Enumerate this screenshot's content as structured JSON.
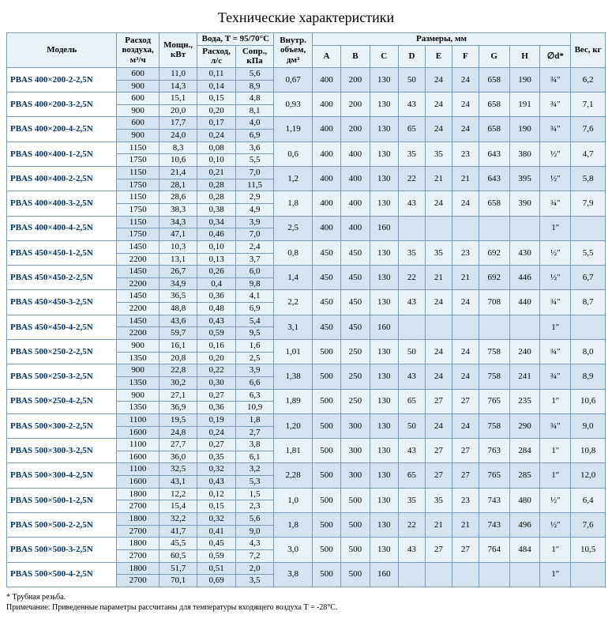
{
  "title": "Технические характеристики",
  "columns": {
    "model": "Модель",
    "airflow": "Расход воздуха, м³/ч",
    "power": "Мощн., кВт",
    "water": "Вода, T = 95/70°C",
    "flow": "Расход, л/с",
    "drop": "Сопр., кПа",
    "volume": "Внутр. объем, дм³",
    "dims": "Размеры, мм",
    "A": "A",
    "B": "B",
    "C": "C",
    "D": "D",
    "E": "E",
    "F": "F",
    "G": "G",
    "H": "H",
    "d": "∅d*",
    "weight": "Вес, кг"
  },
  "col_widths": {
    "model": 115,
    "airflow": 44,
    "power": 40,
    "flow": 40,
    "drop": 40,
    "volume": 40,
    "A": 30,
    "B": 30,
    "C": 30,
    "D": 28,
    "E": 28,
    "F": 28,
    "G": 32,
    "H": 32,
    "d": 32,
    "weight": 36
  },
  "header_bg": "#eaf2f9",
  "row_odd_bg": "#d5e3f0",
  "row_even_bg": "#eaf2f9",
  "border_color": "#7a9ab8",
  "model_color": "#003366",
  "rows": [
    {
      "model": "PBAS 400×200-2-2,5N",
      "air": [
        "600",
        "900"
      ],
      "pw": [
        "11,0",
        "14,3"
      ],
      "fl": [
        "0,11",
        "0,14"
      ],
      "dp": [
        "5,6",
        "8,9"
      ],
      "vol": "0,67",
      "A": "400",
      "B": "200",
      "C": "130",
      "D": "50",
      "E": "24",
      "F": "24",
      "G": "658",
      "H": "190",
      "d": "¾″",
      "wt": "6,2"
    },
    {
      "model": "PBAS 400×200-3-2,5N",
      "air": [
        "600",
        "900"
      ],
      "pw": [
        "15,1",
        "20,0"
      ],
      "fl": [
        "0,15",
        "0,20"
      ],
      "dp": [
        "4,8",
        "8,1"
      ],
      "vol": "0,93",
      "A": "400",
      "B": "200",
      "C": "130",
      "D": "43",
      "E": "24",
      "F": "24",
      "G": "658",
      "H": "191",
      "d": "¾″",
      "wt": "7,1"
    },
    {
      "model": "PBAS 400×200-4-2,5N",
      "air": [
        "600",
        "900"
      ],
      "pw": [
        "17,7",
        "24,0"
      ],
      "fl": [
        "0,17",
        "0,24"
      ],
      "dp": [
        "4,0",
        "6,9"
      ],
      "vol": "1,19",
      "A": "400",
      "B": "200",
      "C": "130",
      "D": "65",
      "E": "24",
      "F": "24",
      "G": "658",
      "H": "190",
      "d": "¾″",
      "wt": "7,6"
    },
    {
      "model": "PBAS 400×400-1-2,5N",
      "air": [
        "1150",
        "1750"
      ],
      "pw": [
        "8,3",
        "10,6"
      ],
      "fl": [
        "0,08",
        "0,10"
      ],
      "dp": [
        "3,6",
        "5,5"
      ],
      "vol": "0,6",
      "A": "400",
      "B": "400",
      "C": "130",
      "D": "35",
      "E": "35",
      "F": "23",
      "G": "643",
      "H": "380",
      "d": "½″",
      "wt": "4,7"
    },
    {
      "model": "PBAS 400×400-2-2,5N",
      "air": [
        "1150",
        "1750"
      ],
      "pw": [
        "21,4",
        "28,1"
      ],
      "fl": [
        "0,21",
        "0,28"
      ],
      "dp": [
        "7,0",
        "11,5"
      ],
      "vol": "1,2",
      "A": "400",
      "B": "400",
      "C": "130",
      "D": "22",
      "E": "21",
      "F": "21",
      "G": "643",
      "H": "395",
      "d": "½″",
      "wt": "5,8"
    },
    {
      "model": "PBAS 400×400-3-2,5N",
      "air": [
        "1150",
        "1750"
      ],
      "pw": [
        "28,6",
        "38,3"
      ],
      "fl": [
        "0,28",
        "0,38"
      ],
      "dp": [
        "2,9",
        "4,9"
      ],
      "vol": "1,8",
      "A": "400",
      "B": "400",
      "C": "130",
      "D": "43",
      "E": "24",
      "F": "24",
      "G": "658",
      "H": "390",
      "d": "¾″",
      "wt": "7,9"
    },
    {
      "model": "PBAS 400×400-4-2,5N",
      "air": [
        "1150",
        "1750"
      ],
      "pw": [
        "34,3",
        "47,1"
      ],
      "fl": [
        "0,34",
        "0,46"
      ],
      "dp": [
        "3,9",
        "7,0"
      ],
      "vol": "2,5",
      "A": "400",
      "B": "400",
      "C": "160",
      "D": "",
      "E": "",
      "F": "",
      "G": "",
      "H": "",
      "d": "1″",
      "wt": ""
    },
    {
      "model": "PBAS 450×450-1-2,5N",
      "air": [
        "1450",
        "2200"
      ],
      "pw": [
        "10,3",
        "13,1"
      ],
      "fl": [
        "0,10",
        "0,13"
      ],
      "dp": [
        "2,4",
        "3,7"
      ],
      "vol": "0,8",
      "A": "450",
      "B": "450",
      "C": "130",
      "D": "35",
      "E": "35",
      "F": "23",
      "G": "692",
      "H": "430",
      "d": "½″",
      "wt": "5,5"
    },
    {
      "model": "PBAS 450×450-2-2,5N",
      "air": [
        "1450",
        "2200"
      ],
      "pw": [
        "26,7",
        "34,9"
      ],
      "fl": [
        "0,26",
        "0,4"
      ],
      "dp": [
        "6,0",
        "9,8"
      ],
      "vol": "1,4",
      "A": "450",
      "B": "450",
      "C": "130",
      "D": "22",
      "E": "21",
      "F": "21",
      "G": "692",
      "H": "446",
      "d": "½″",
      "wt": "6,7"
    },
    {
      "model": "PBAS 450×450-3-2,5N",
      "air": [
        "1450",
        "2200"
      ],
      "pw": [
        "36,5",
        "48,8"
      ],
      "fl": [
        "0,36",
        "0,48"
      ],
      "dp": [
        "4,1",
        "6,9"
      ],
      "vol": "2,2",
      "A": "450",
      "B": "450",
      "C": "130",
      "D": "43",
      "E": "24",
      "F": "24",
      "G": "708",
      "H": "440",
      "d": "¾″",
      "wt": "8,7"
    },
    {
      "model": "PBAS 450×450-4-2,5N",
      "air": [
        "1450",
        "2200"
      ],
      "pw": [
        "43,6",
        "59,7"
      ],
      "fl": [
        "0,43",
        "0,59"
      ],
      "dp": [
        "5,4",
        "9,5"
      ],
      "vol": "3,1",
      "A": "450",
      "B": "450",
      "C": "160",
      "D": "",
      "E": "",
      "F": "",
      "G": "",
      "H": "",
      "d": "1″",
      "wt": ""
    },
    {
      "model": "PBAS 500×250-2-2,5N",
      "air": [
        "900",
        "1350"
      ],
      "pw": [
        "16,1",
        "20,8"
      ],
      "fl": [
        "0,16",
        "0,20"
      ],
      "dp": [
        "1,6",
        "2,5"
      ],
      "vol": "1,01",
      "A": "500",
      "B": "250",
      "C": "130",
      "D": "50",
      "E": "24",
      "F": "24",
      "G": "758",
      "H": "240",
      "d": "¾″",
      "wt": "8,0"
    },
    {
      "model": "PBAS 500×250-3-2,5N",
      "air": [
        "900",
        "1350"
      ],
      "pw": [
        "22,8",
        "30,2"
      ],
      "fl": [
        "0,22",
        "0,30"
      ],
      "dp": [
        "3,9",
        "6,6"
      ],
      "vol": "1,38",
      "A": "500",
      "B": "250",
      "C": "130",
      "D": "43",
      "E": "24",
      "F": "24",
      "G": "758",
      "H": "241",
      "d": "¾″",
      "wt": "8,9"
    },
    {
      "model": "PBAS 500×250-4-2,5N",
      "air": [
        "900",
        "1350"
      ],
      "pw": [
        "27,1",
        "36,9"
      ],
      "fl": [
        "0,27",
        "0,36"
      ],
      "dp": [
        "6,3",
        "10,9"
      ],
      "vol": "1,89",
      "A": "500",
      "B": "250",
      "C": "130",
      "D": "65",
      "E": "27",
      "F": "27",
      "G": "765",
      "H": "235",
      "d": "1″",
      "wt": "10,6"
    },
    {
      "model": "PBAS 500×300-2-2,5N",
      "air": [
        "1100",
        "1600"
      ],
      "pw": [
        "19,5",
        "24,8"
      ],
      "fl": [
        "0,19",
        "0,24"
      ],
      "dp": [
        "1,8",
        "2,7"
      ],
      "vol": "1,20",
      "A": "500",
      "B": "300",
      "C": "130",
      "D": "50",
      "E": "24",
      "F": "24",
      "G": "758",
      "H": "290",
      "d": "¾″",
      "wt": "9,0"
    },
    {
      "model": "PBAS 500×300-3-2,5N",
      "air": [
        "1100",
        "1600"
      ],
      "pw": [
        "27,7",
        "36,0"
      ],
      "fl": [
        "0,27",
        "0,35"
      ],
      "dp": [
        "3,8",
        "6,1"
      ],
      "vol": "1,81",
      "A": "500",
      "B": "300",
      "C": "130",
      "D": "43",
      "E": "27",
      "F": "27",
      "G": "763",
      "H": "284",
      "d": "1″",
      "wt": "10,8"
    },
    {
      "model": "PBAS 500×300-4-2,5N",
      "air": [
        "1100",
        "1600"
      ],
      "pw": [
        "32,5",
        "43,1"
      ],
      "fl": [
        "0,32",
        "0,43"
      ],
      "dp": [
        "3,2",
        "5,3"
      ],
      "vol": "2,28",
      "A": "500",
      "B": "300",
      "C": "130",
      "D": "65",
      "E": "27",
      "F": "27",
      "G": "765",
      "H": "285",
      "d": "1″",
      "wt": "12,0"
    },
    {
      "model": "PBAS 500×500-1-2,5N",
      "air": [
        "1800",
        "2700"
      ],
      "pw": [
        "12,2",
        "15,4"
      ],
      "fl": [
        "0,12",
        "0,15"
      ],
      "dp": [
        "1,5",
        "2,3"
      ],
      "vol": "1,0",
      "A": "500",
      "B": "500",
      "C": "130",
      "D": "35",
      "E": "35",
      "F": "23",
      "G": "743",
      "H": "480",
      "d": "½″",
      "wt": "6,4"
    },
    {
      "model": "PBAS 500×500-2-2,5N",
      "air": [
        "1800",
        "2700"
      ],
      "pw": [
        "32,2",
        "41,7"
      ],
      "fl": [
        "0,32",
        "0,41"
      ],
      "dp": [
        "5,6",
        "9,0"
      ],
      "vol": "1,8",
      "A": "500",
      "B": "500",
      "C": "130",
      "D": "22",
      "E": "21",
      "F": "21",
      "G": "743",
      "H": "496",
      "d": "½″",
      "wt": "7,6"
    },
    {
      "model": "PBAS 500×500-3-2,5N",
      "air": [
        "1800",
        "2700"
      ],
      "pw": [
        "45,5",
        "60,5"
      ],
      "fl": [
        "0,45",
        "0,59"
      ],
      "dp": [
        "4,3",
        "7,2"
      ],
      "vol": "3,0",
      "A": "500",
      "B": "500",
      "C": "130",
      "D": "43",
      "E": "27",
      "F": "27",
      "G": "764",
      "H": "484",
      "d": "1″",
      "wt": "10,5"
    },
    {
      "model": "PBAS 500×500-4-2,5N",
      "air": [
        "1800",
        "2700"
      ],
      "pw": [
        "51,7",
        "70,1"
      ],
      "fl": [
        "0,51",
        "0,69"
      ],
      "dp": [
        "2,0",
        "3,5"
      ],
      "vol": "3,8",
      "A": "500",
      "B": "500",
      "C": "160",
      "D": "",
      "E": "",
      "F": "",
      "G": "",
      "H": "",
      "d": "1″",
      "wt": ""
    }
  ],
  "footnotes": [
    "* Трубная резьба.",
    "Примечание: Приведенные параметры рассчитаны для температуры входящего воздуха T = -28°C."
  ]
}
